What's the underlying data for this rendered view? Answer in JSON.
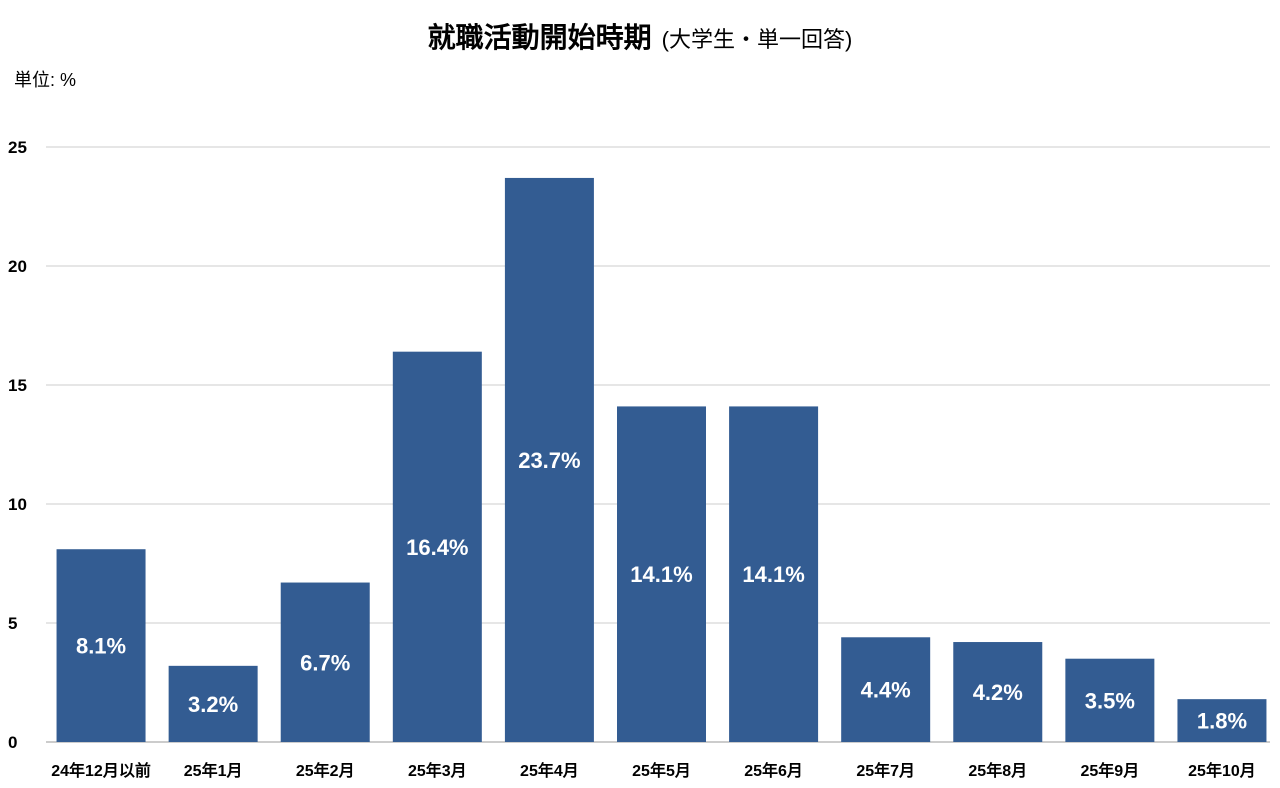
{
  "title": "就職活動開始時期",
  "subtitle": "(大学生・単一回答)",
  "unit_label": "単位: %",
  "colors": {
    "bar": "#335c92",
    "grid": "#cccccc",
    "bar_label": "#ffffff"
  },
  "chart_data": {
    "type": "bar",
    "title": "就職活動開始時期",
    "subtitle": "(大学生・単一回答)",
    "ylabel": "",
    "xlabel": "",
    "ylim": [
      0,
      25
    ],
    "yticks": [
      0,
      5,
      10,
      15,
      20,
      25
    ],
    "grid": true,
    "categories": [
      "24年12月以前",
      "25年1月",
      "25年2月",
      "25年3月",
      "25年4月",
      "25年5月",
      "25年6月",
      "25年7月",
      "25年8月",
      "25年9月",
      "25年10月"
    ],
    "values": [
      8.1,
      3.2,
      6.7,
      16.4,
      23.7,
      14.1,
      14.1,
      4.4,
      4.2,
      3.5,
      1.8
    ],
    "data_labels": [
      "8.1%",
      "3.2%",
      "6.7%",
      "16.4%",
      "23.7%",
      "14.1%",
      "14.1%",
      "4.4%",
      "4.2%",
      "3.5%",
      "1.8%"
    ]
  }
}
